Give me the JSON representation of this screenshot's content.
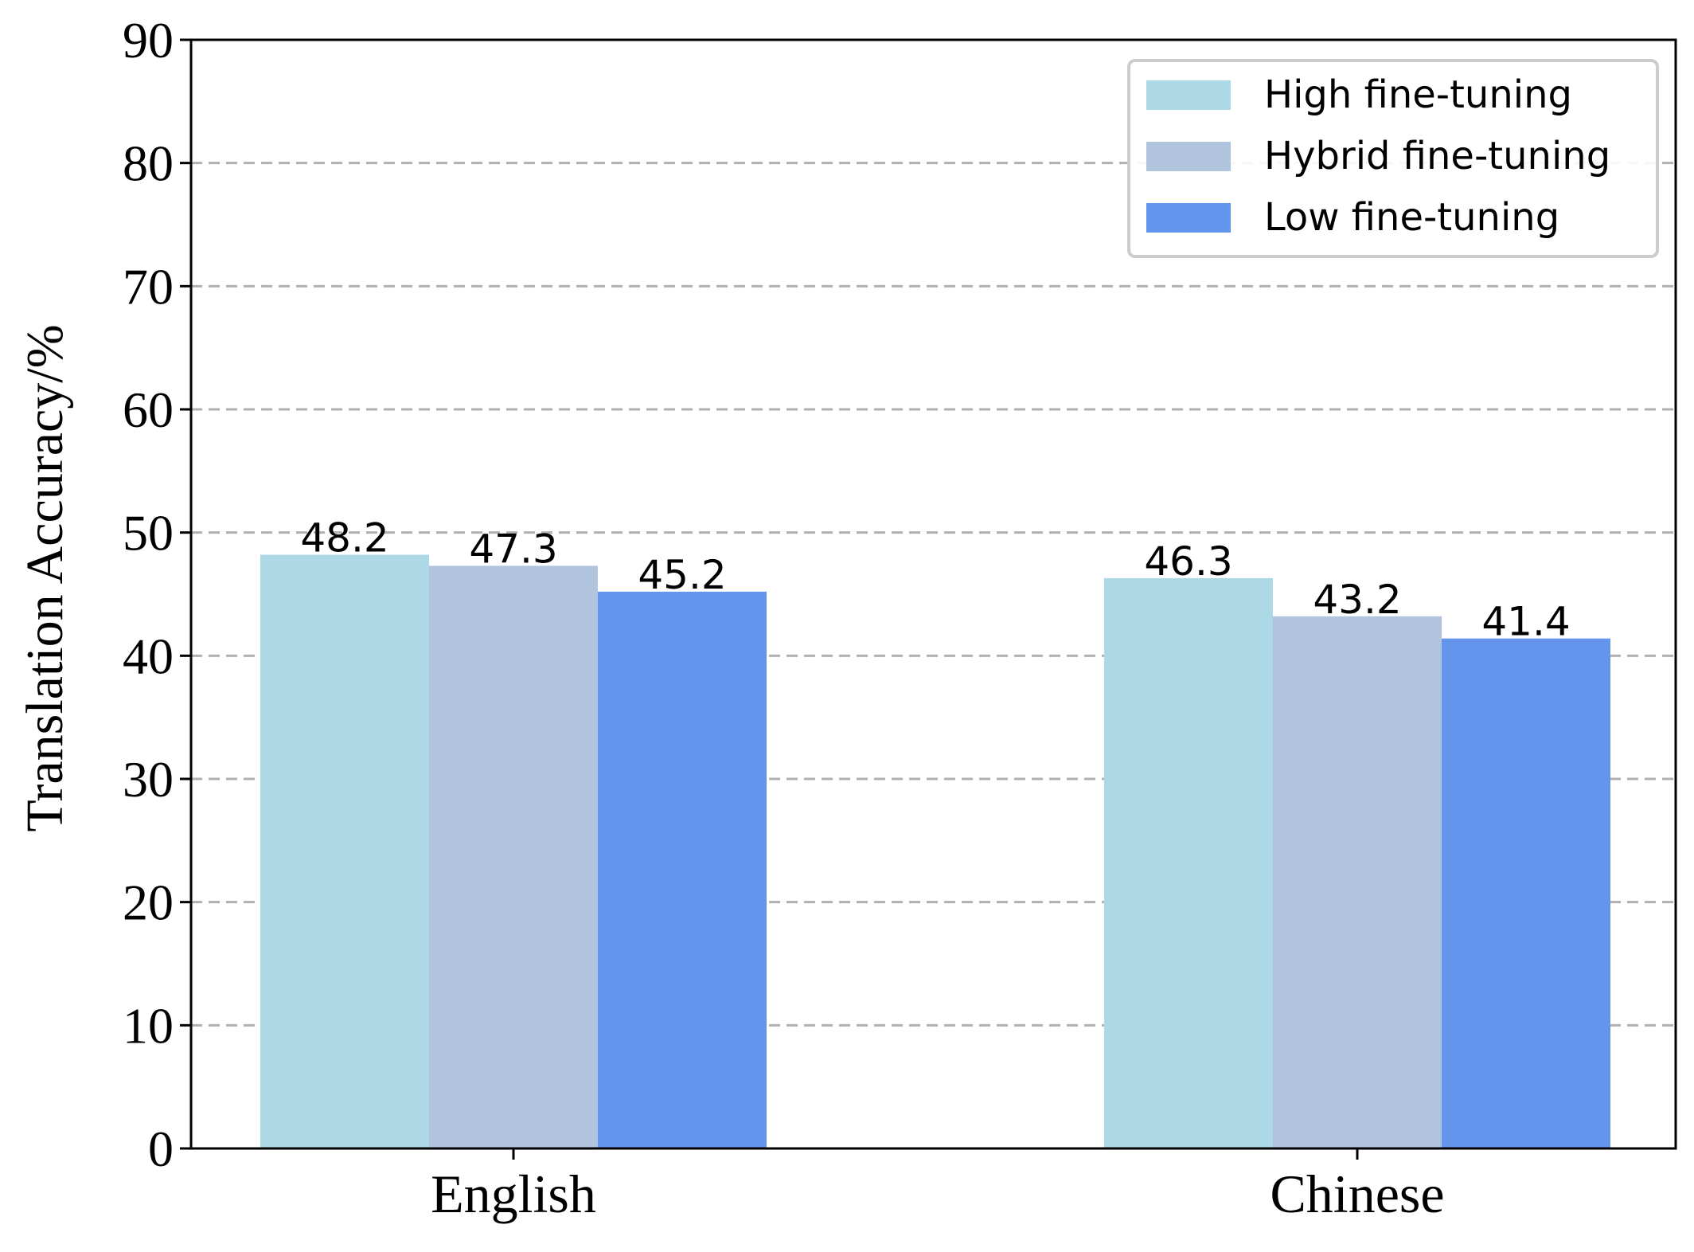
{
  "chart_data": {
    "type": "bar",
    "categories": [
      "English",
      "Chinese"
    ],
    "series": [
      {
        "name": "High fine-tuning",
        "values": [
          48.2,
          46.3
        ],
        "color": "#add8e6"
      },
      {
        "name": "Hybrid fine-tuning",
        "values": [
          47.3,
          43.2
        ],
        "color": "#b0c4de"
      },
      {
        "name": "Low fine-tuning",
        "values": [
          45.2,
          41.4
        ],
        "color": "#6495ed"
      }
    ],
    "data_labels": [
      [
        "48.2",
        "46.3"
      ],
      [
        "47.3",
        "43.2"
      ],
      [
        "45.2",
        "41.4"
      ]
    ],
    "ylabel": "Translation Accuracy/%",
    "xlabel": "",
    "ylim": [
      0,
      90
    ],
    "yticks": [
      "0",
      "10",
      "20",
      "30",
      "40",
      "50",
      "60",
      "70",
      "80",
      "90"
    ],
    "grid": "horizontal dashed",
    "legend_position": "top-right"
  }
}
